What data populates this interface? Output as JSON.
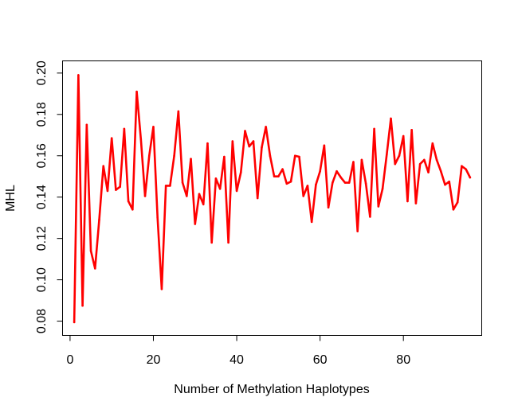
{
  "chart_data": {
    "type": "line",
    "title": "",
    "xlabel": "Number of Methylation Haplotypes",
    "ylabel": "MHL",
    "xlim": [
      -1.8,
      98.8
    ],
    "ylim": [
      0.0731,
      0.2059
    ],
    "xticks": [
      0,
      20,
      40,
      60,
      80
    ],
    "yticks": [
      0.08,
      0.1,
      0.12,
      0.14,
      0.16,
      0.18,
      0.2
    ],
    "xtick_labels": [
      "0",
      "20",
      "40",
      "60",
      "80"
    ],
    "ytick_labels": [
      "0.08",
      "0.10",
      "0.12",
      "0.14",
      "0.16",
      "0.18",
      "0.20"
    ],
    "grid": false,
    "series": [
      {
        "color": "#ff0000",
        "x": [
          1,
          2,
          3,
          4,
          5,
          6,
          7,
          8,
          9,
          10,
          11,
          12,
          13,
          14,
          15,
          16,
          17,
          18,
          19,
          20,
          21,
          22,
          23,
          24,
          25,
          26,
          27,
          28,
          29,
          30,
          31,
          32,
          33,
          34,
          35,
          36,
          37,
          38,
          39,
          40,
          41,
          42,
          43,
          44,
          45,
          46,
          47,
          48,
          49,
          50,
          51,
          52,
          53,
          54,
          55,
          56,
          57,
          58,
          59,
          60,
          61,
          62,
          63,
          64,
          65,
          66,
          67,
          68,
          69,
          70,
          71,
          72,
          73,
          74,
          75,
          76,
          77,
          78,
          79,
          80,
          81,
          82,
          83,
          84,
          85,
          86,
          87,
          88,
          89,
          90,
          91,
          92,
          93,
          94,
          95,
          96
        ],
        "y": [
          0.0795,
          0.199,
          0.0875,
          0.175,
          0.114,
          0.1055,
          0.129,
          0.155,
          0.143,
          0.1685,
          0.1435,
          0.145,
          0.173,
          0.138,
          0.134,
          0.191,
          0.168,
          0.1405,
          0.16,
          0.174,
          0.13,
          0.0955,
          0.1455,
          0.1455,
          0.16,
          0.1815,
          0.147,
          0.1405,
          0.1585,
          0.127,
          0.1415,
          0.1365,
          0.166,
          0.118,
          0.149,
          0.144,
          0.1595,
          0.118,
          0.167,
          0.143,
          0.152,
          0.172,
          0.1645,
          0.167,
          0.1395,
          0.164,
          0.174,
          0.16,
          0.15,
          0.15,
          0.1535,
          0.1465,
          0.1475,
          0.16,
          0.1595,
          0.1405,
          0.1455,
          0.128,
          0.146,
          0.1525,
          0.165,
          0.135,
          0.147,
          0.1525,
          0.1495,
          0.147,
          0.147,
          0.157,
          0.1235,
          0.158,
          0.1465,
          0.1305,
          0.173,
          0.1355,
          0.144,
          0.1605,
          0.178,
          0.156,
          0.16,
          0.1695,
          0.138,
          0.1725,
          0.137,
          0.156,
          0.158,
          0.152,
          0.166,
          0.158,
          0.1525,
          0.146,
          0.1475,
          0.134,
          0.1375,
          0.155,
          0.1535,
          0.1495
        ]
      }
    ]
  }
}
